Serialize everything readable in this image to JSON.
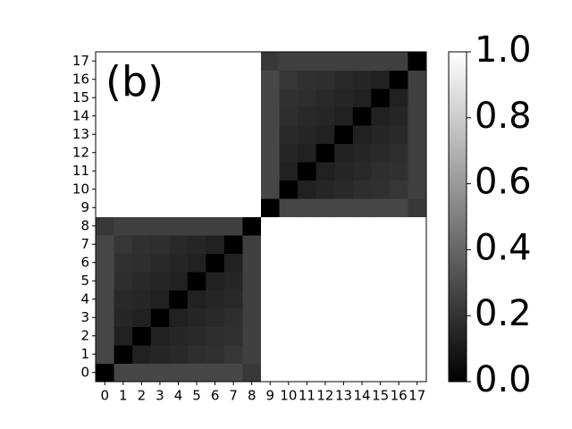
{
  "chart_data": {
    "type": "heatmap",
    "annotation": "(b)",
    "colormap": "gray",
    "categories": [
      "0",
      "1",
      "2",
      "3",
      "4",
      "5",
      "6",
      "7",
      "8",
      "9",
      "10",
      "11",
      "12",
      "13",
      "14",
      "15",
      "16",
      "17"
    ],
    "values": [
      [
        0,
        0.28,
        0.28,
        0.28,
        0.28,
        0.28,
        0.28,
        0.28,
        0.22,
        1,
        1,
        1,
        1,
        1,
        1,
        1,
        1,
        1
      ],
      [
        0.28,
        0,
        0.13,
        0.15,
        0.16,
        0.18,
        0.19,
        0.21,
        0.25,
        1,
        1,
        1,
        1,
        1,
        1,
        1,
        1,
        1
      ],
      [
        0.28,
        0.13,
        0,
        0.13,
        0.15,
        0.16,
        0.18,
        0.19,
        0.25,
        1,
        1,
        1,
        1,
        1,
        1,
        1,
        1,
        1
      ],
      [
        0.28,
        0.15,
        0.13,
        0,
        0.13,
        0.15,
        0.16,
        0.18,
        0.25,
        1,
        1,
        1,
        1,
        1,
        1,
        1,
        1,
        1
      ],
      [
        0.28,
        0.16,
        0.15,
        0.13,
        0,
        0.13,
        0.15,
        0.16,
        0.25,
        1,
        1,
        1,
        1,
        1,
        1,
        1,
        1,
        1
      ],
      [
        0.28,
        0.18,
        0.16,
        0.15,
        0.13,
        0,
        0.13,
        0.15,
        0.25,
        1,
        1,
        1,
        1,
        1,
        1,
        1,
        1,
        1
      ],
      [
        0.28,
        0.19,
        0.18,
        0.16,
        0.15,
        0.13,
        0,
        0.13,
        0.25,
        1,
        1,
        1,
        1,
        1,
        1,
        1,
        1,
        1
      ],
      [
        0.28,
        0.21,
        0.19,
        0.18,
        0.16,
        0.15,
        0.13,
        0,
        0.25,
        1,
        1,
        1,
        1,
        1,
        1,
        1,
        1,
        1
      ],
      [
        0.22,
        0.25,
        0.25,
        0.25,
        0.25,
        0.25,
        0.25,
        0.25,
        0,
        1,
        1,
        1,
        1,
        1,
        1,
        1,
        1,
        1
      ],
      [
        1,
        1,
        1,
        1,
        1,
        1,
        1,
        1,
        1,
        0,
        0.28,
        0.28,
        0.28,
        0.28,
        0.28,
        0.28,
        0.28,
        0.22
      ],
      [
        1,
        1,
        1,
        1,
        1,
        1,
        1,
        1,
        1,
        0.28,
        0,
        0.13,
        0.15,
        0.16,
        0.18,
        0.19,
        0.21,
        0.25
      ],
      [
        1,
        1,
        1,
        1,
        1,
        1,
        1,
        1,
        1,
        0.28,
        0.13,
        0,
        0.13,
        0.15,
        0.16,
        0.18,
        0.19,
        0.25
      ],
      [
        1,
        1,
        1,
        1,
        1,
        1,
        1,
        1,
        1,
        0.28,
        0.15,
        0.13,
        0,
        0.13,
        0.15,
        0.16,
        0.18,
        0.25
      ],
      [
        1,
        1,
        1,
        1,
        1,
        1,
        1,
        1,
        1,
        0.28,
        0.16,
        0.15,
        0.13,
        0,
        0.13,
        0.15,
        0.16,
        0.25
      ],
      [
        1,
        1,
        1,
        1,
        1,
        1,
        1,
        1,
        1,
        0.28,
        0.18,
        0.16,
        0.15,
        0.13,
        0,
        0.13,
        0.15,
        0.25
      ],
      [
        1,
        1,
        1,
        1,
        1,
        1,
        1,
        1,
        1,
        0.28,
        0.19,
        0.18,
        0.16,
        0.15,
        0.13,
        0,
        0.13,
        0.25
      ],
      [
        1,
        1,
        1,
        1,
        1,
        1,
        1,
        1,
        1,
        0.28,
        0.21,
        0.19,
        0.18,
        0.16,
        0.15,
        0.13,
        0,
        0.25
      ],
      [
        1,
        1,
        1,
        1,
        1,
        1,
        1,
        1,
        1,
        0.22,
        0.25,
        0.25,
        0.25,
        0.25,
        0.25,
        0.25,
        0.25,
        0
      ]
    ],
    "clim": [
      0,
      1
    ],
    "cticks": [
      {
        "value": 0,
        "label": "0.0"
      },
      0.2,
      0.4,
      0.6,
      0.8,
      {
        "value": 1,
        "label": "1.0"
      }
    ]
  }
}
